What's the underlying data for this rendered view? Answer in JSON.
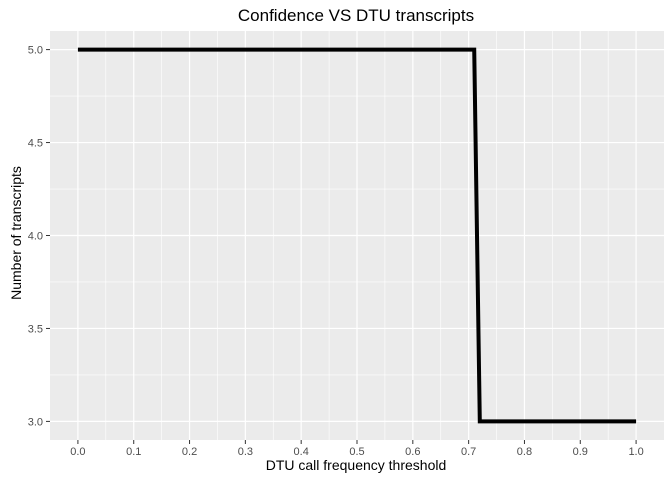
{
  "chart_data": {
    "type": "line",
    "title": "Confidence VS DTU transcripts",
    "xlabel": "DTU call frequency threshold",
    "ylabel": "Number of transcripts",
    "xlim": [
      -0.05,
      1.05
    ],
    "ylim": [
      2.9,
      5.1
    ],
    "x_ticks": [
      0.0,
      0.1,
      0.2,
      0.3,
      0.4,
      0.5,
      0.6,
      0.7,
      0.8,
      0.9,
      1.0
    ],
    "x_tick_labels": [
      "0.0",
      "0.1",
      "0.2",
      "0.3",
      "0.4",
      "0.5",
      "0.6",
      "0.7",
      "0.8",
      "0.9",
      "1.0"
    ],
    "y_ticks": [
      3.0,
      3.5,
      4.0,
      4.5,
      5.0
    ],
    "y_tick_labels": [
      "3.0",
      "3.5",
      "4.0",
      "4.5",
      "5.0"
    ],
    "grid": true,
    "series": [
      {
        "x": [
          0.0,
          0.71,
          0.72,
          1.0
        ],
        "y": [
          5.0,
          5.0,
          3.0,
          3.0
        ],
        "color": "#000000"
      }
    ]
  }
}
